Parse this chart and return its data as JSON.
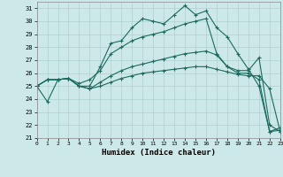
{
  "xlabel": "Humidex (Indice chaleur)",
  "xlim": [
    0,
    23
  ],
  "ylim": [
    21,
    31.5
  ],
  "yticks": [
    21,
    22,
    23,
    24,
    25,
    26,
    27,
    28,
    29,
    30,
    31
  ],
  "xticks": [
    0,
    1,
    2,
    3,
    4,
    5,
    6,
    7,
    8,
    9,
    10,
    11,
    12,
    13,
    14,
    15,
    16,
    17,
    18,
    19,
    20,
    21,
    22,
    23
  ],
  "bg_color": "#cce8e8",
  "grid_color": "#aad0d0",
  "line_color": "#1a6b5e",
  "series": [
    [
      25.0,
      23.8,
      25.5,
      25.6,
      25.0,
      25.0,
      26.5,
      28.3,
      28.5,
      29.5,
      30.2,
      30.0,
      29.8,
      30.5,
      31.2,
      30.5,
      30.8,
      29.5,
      28.8,
      27.5,
      26.3,
      25.0,
      21.5,
      21.8
    ],
    [
      25.0,
      25.5,
      25.5,
      25.6,
      25.2,
      25.5,
      26.2,
      27.5,
      28.0,
      28.5,
      28.8,
      29.0,
      29.2,
      29.5,
      29.8,
      30.0,
      30.2,
      27.5,
      26.5,
      26.0,
      26.0,
      25.5,
      21.5,
      21.6
    ],
    [
      25.0,
      25.5,
      25.5,
      25.6,
      25.0,
      24.8,
      25.3,
      25.8,
      26.2,
      26.5,
      26.7,
      26.9,
      27.1,
      27.3,
      27.5,
      27.6,
      27.7,
      27.4,
      26.5,
      26.2,
      26.2,
      27.2,
      22.0,
      21.5
    ],
    [
      25.0,
      25.5,
      25.5,
      25.6,
      25.0,
      24.8,
      25.0,
      25.3,
      25.6,
      25.8,
      26.0,
      26.1,
      26.2,
      26.3,
      26.4,
      26.5,
      26.5,
      26.3,
      26.1,
      25.9,
      25.8,
      25.8,
      24.8,
      21.5
    ]
  ]
}
